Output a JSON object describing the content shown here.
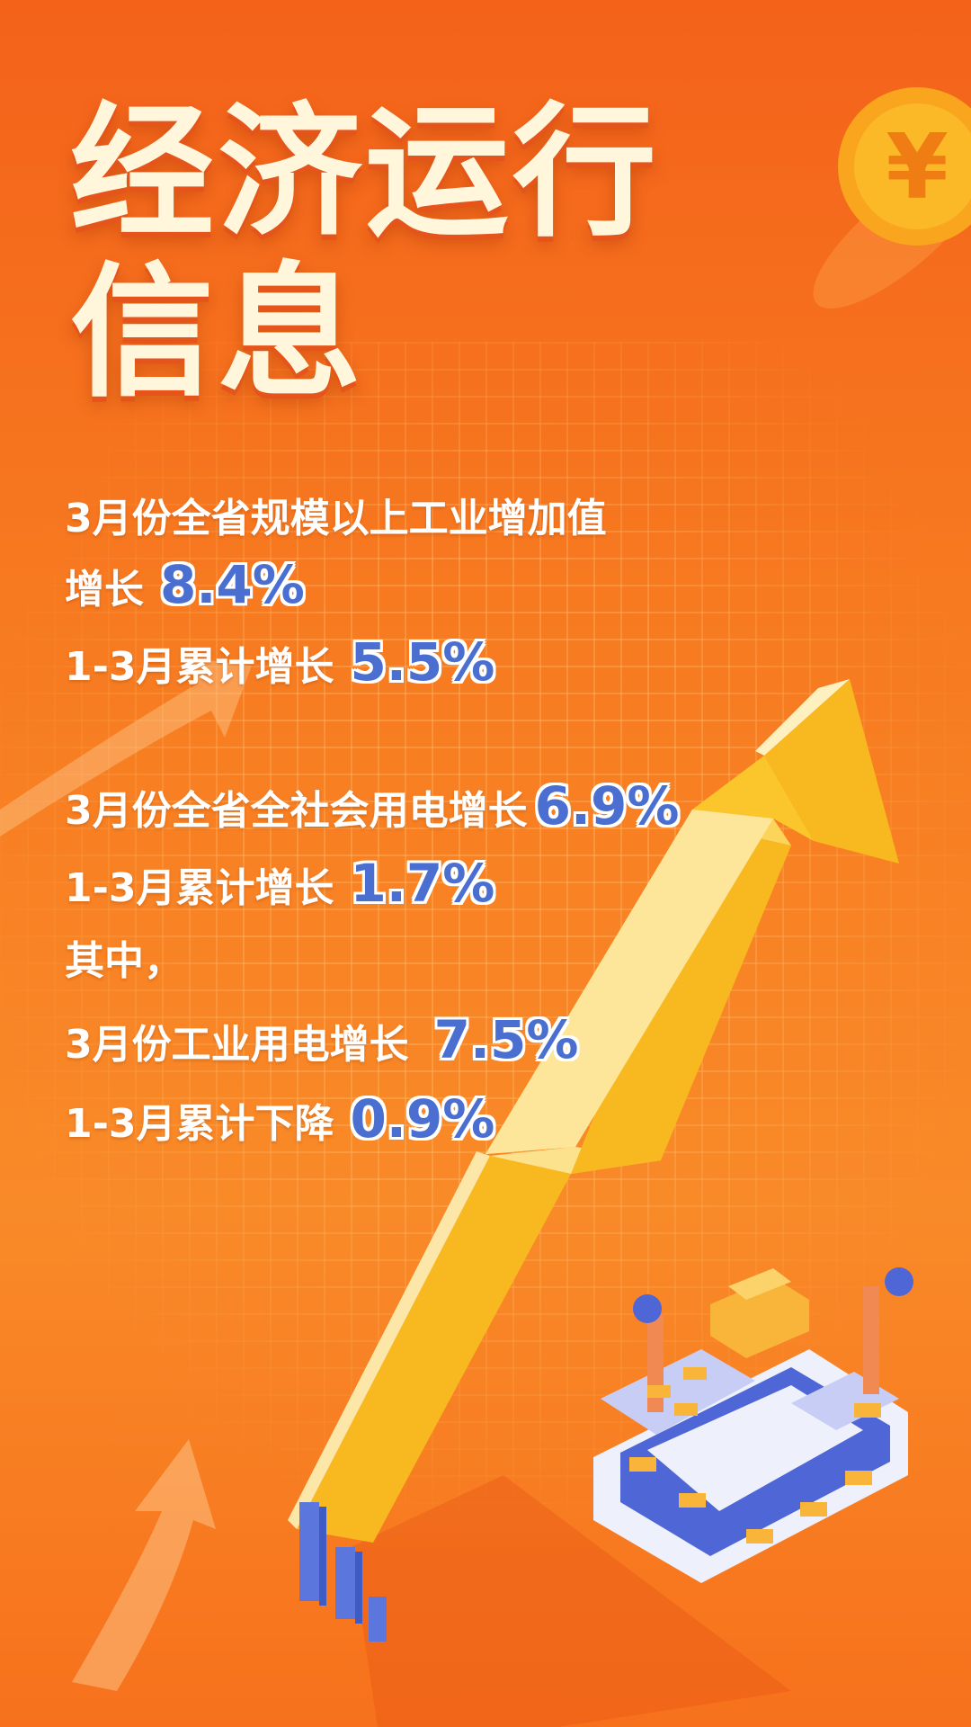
{
  "title": {
    "line1": "经济运行",
    "line2": "信息"
  },
  "industry": {
    "heading": "3月份全省规模以上工业增加值",
    "monthly_label": "增长",
    "monthly_value": "8.4%",
    "cumulative_label": "1-3月累计增长",
    "cumulative_value": "5.5%"
  },
  "electricity": {
    "monthly_label": "3月份全省全社会用电增长",
    "monthly_value": "6.9%",
    "cumulative_label": "1-3月累计增长",
    "cumulative_value": "1.7%",
    "among_label": "其中，",
    "industrial_label": "3月份工业用电增长",
    "industrial_value": "7.5%",
    "industrial_cumulative_label": "1-3月累计下降",
    "industrial_cumulative_value": "0.9%"
  },
  "icons": [
    "yuan-coin-icon",
    "rising-arrow-icon",
    "factory-conveyor-icon",
    "bar-chart-icon"
  ],
  "colors": {
    "background": "#f77a20",
    "number": "#4a6fd0",
    "arrow": "#fbc52c",
    "title": "#fff6dc"
  }
}
